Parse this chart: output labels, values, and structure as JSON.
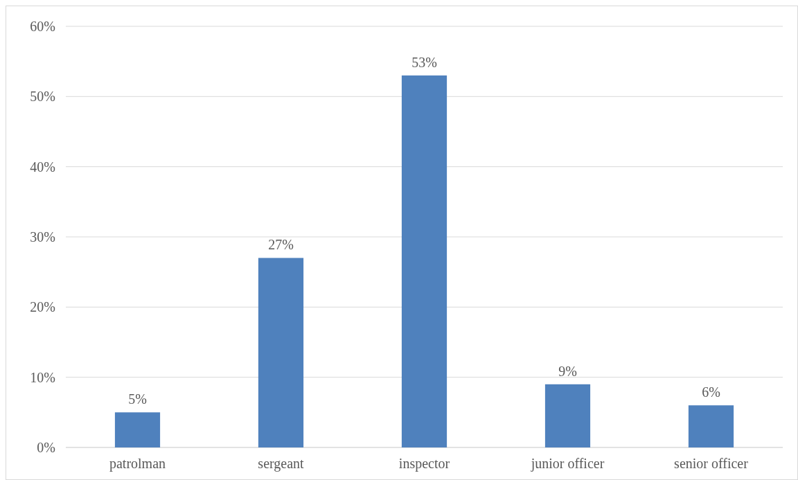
{
  "chart_data": {
    "type": "bar",
    "categories": [
      "patrolman",
      "sergeant",
      "inspector",
      "junior officer",
      "senior officer"
    ],
    "values": [
      5,
      27,
      53,
      9,
      6
    ],
    "value_labels": [
      "5%",
      "27%",
      "53%",
      "9%",
      "6%"
    ],
    "color": "#4f81bd",
    "ylim": [
      0,
      60
    ],
    "yticks": [
      {
        "value": 0,
        "label": "0%"
      },
      {
        "value": 10,
        "label": "10%"
      },
      {
        "value": 20,
        "label": "20%"
      },
      {
        "value": 30,
        "label": "30%"
      },
      {
        "value": 40,
        "label": "40%"
      },
      {
        "value": 50,
        "label": "50%"
      },
      {
        "value": 60,
        "label": "60%"
      }
    ],
    "grid": "y"
  }
}
